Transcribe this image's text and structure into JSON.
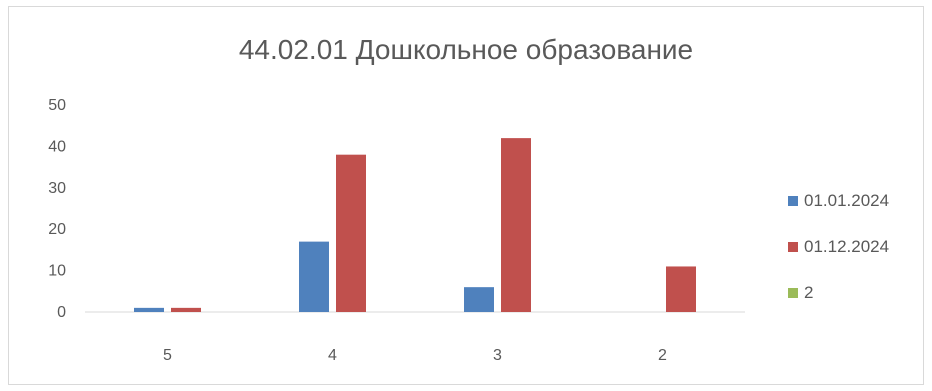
{
  "chart_data": {
    "type": "bar",
    "title": "44.02.01 Дошкольное образование",
    "categories": [
      "5",
      "4",
      "3",
      "2"
    ],
    "series": [
      {
        "name": "01.01.2024",
        "color": "#4f81bd",
        "values": [
          1,
          17,
          6,
          0
        ]
      },
      {
        "name": "01.12.2024",
        "color": "#c0504d",
        "values": [
          1,
          38,
          42,
          11
        ]
      },
      {
        "name": "2",
        "color": "#9bbb59",
        "values": [
          0,
          0,
          0,
          0
        ]
      }
    ],
    "ylim": [
      0,
      50
    ],
    "yticks": [
      "0",
      "10",
      "20",
      "30",
      "40",
      "50"
    ],
    "grid": false,
    "legend": "right"
  }
}
